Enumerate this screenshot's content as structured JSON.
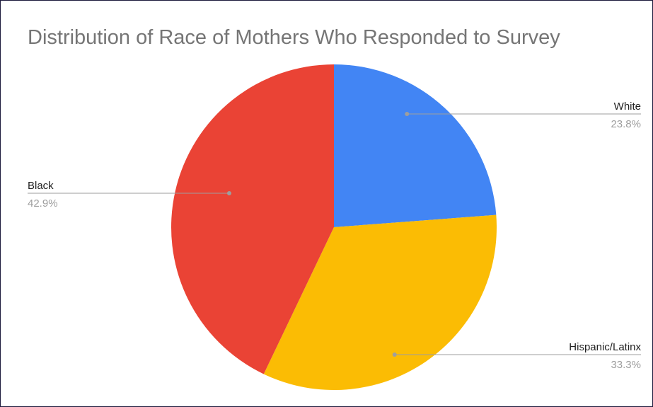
{
  "chart_data": {
    "type": "pie",
    "title": "Distribution of Race of Mothers Who Responded to Survey",
    "slices": [
      {
        "label": "White",
        "value": 23.8,
        "display": "23.8%",
        "color": "#4285f4"
      },
      {
        "label": "Hispanic/Latinx",
        "value": 33.3,
        "display": "33.3%",
        "color": "#fbbc04"
      },
      {
        "label": "Black",
        "value": 42.9,
        "display": "42.9%",
        "color": "#ea4335"
      }
    ],
    "legend": "none",
    "start_angle": "12 o'clock",
    "direction": "clockwise"
  }
}
